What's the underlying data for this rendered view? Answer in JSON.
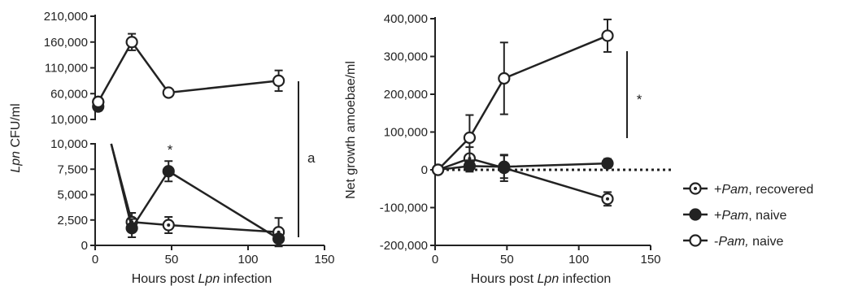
{
  "chart_data": [
    {
      "type": "line",
      "panel": "left",
      "xlabel": {
        "pre": "Hours post ",
        "italic": "Lpn",
        "post": " infection"
      },
      "ylabel": {
        "italic": "Lpn",
        "post": " CFU/ml"
      },
      "xlim": [
        0,
        150
      ],
      "xticks": [
        "0",
        "50",
        "100",
        "150"
      ],
      "upper_segment": {
        "ylim": [
          10000,
          210000
        ],
        "yticks": [
          "10,000",
          "60,000",
          "110,000",
          "160,000",
          "210,000"
        ]
      },
      "lower_segment": {
        "ylim": [
          0,
          10000
        ],
        "yticks": [
          "0",
          "2,500",
          "5,000",
          "7,500",
          "10,000"
        ]
      },
      "series": [
        {
          "name": "+Pam, recovered",
          "x": [
            2,
            24,
            48,
            120
          ],
          "y": [
            44000,
            2300,
            2000,
            1300
          ],
          "err": [
            9000,
            900,
            800,
            1400
          ]
        },
        {
          "name": "+Pam, naive",
          "x": [
            2,
            24,
            48,
            120
          ],
          "y": [
            35000,
            1700,
            7300,
            650
          ],
          "err": [
            8000,
            900,
            1000,
            300
          ]
        },
        {
          "name": "-Pam, naive",
          "x": [
            2,
            24,
            48,
            120
          ],
          "y": [
            44000,
            160000,
            62000,
            85000
          ],
          "err": [
            6000,
            16000,
            3000,
            20000
          ]
        }
      ],
      "annotations": {
        "star": "*",
        "bracket_label": "a"
      }
    },
    {
      "type": "line",
      "panel": "right",
      "xlabel": {
        "pre": "Hours post ",
        "italic": "Lpn",
        "post": " infection"
      },
      "ylabel": "Net growth amoebae/ml",
      "xlim": [
        0,
        150
      ],
      "ylim": [
        -200000,
        400000
      ],
      "xticks": [
        "0",
        "50",
        "100",
        "150"
      ],
      "yticks": [
        "-200,000",
        "-100,000",
        "0",
        "100,000",
        "200,000",
        "300,000",
        "400,000"
      ],
      "zero_line": "dotted",
      "series": [
        {
          "name": "+Pam, recovered",
          "x": [
            2,
            24,
            48,
            120
          ],
          "y": [
            0,
            30000,
            5000,
            -77000
          ],
          "err": [
            4000,
            30000,
            35000,
            18000
          ]
        },
        {
          "name": "+Pam, naive",
          "x": [
            2,
            24,
            48,
            120
          ],
          "y": [
            0,
            10000,
            8000,
            17000
          ],
          "err": [
            4000,
            15000,
            30000,
            12000
          ]
        },
        {
          "name": "-Pam, naive",
          "x": [
            2,
            24,
            48,
            120
          ],
          "y": [
            0,
            85000,
            242000,
            355000
          ],
          "err": [
            4000,
            60000,
            95000,
            43000
          ]
        }
      ],
      "annotations": {
        "star": "*"
      }
    }
  ],
  "legend": [
    {
      "style": "dot-ring",
      "italic": "Pam",
      "prefix": "+",
      "suffix": ", recovered"
    },
    {
      "style": "filled",
      "italic": "Pam",
      "prefix": "+",
      "suffix": ", naive"
    },
    {
      "style": "open",
      "italic": "Pam,",
      "prefix": "-",
      "suffix": " naive"
    }
  ]
}
